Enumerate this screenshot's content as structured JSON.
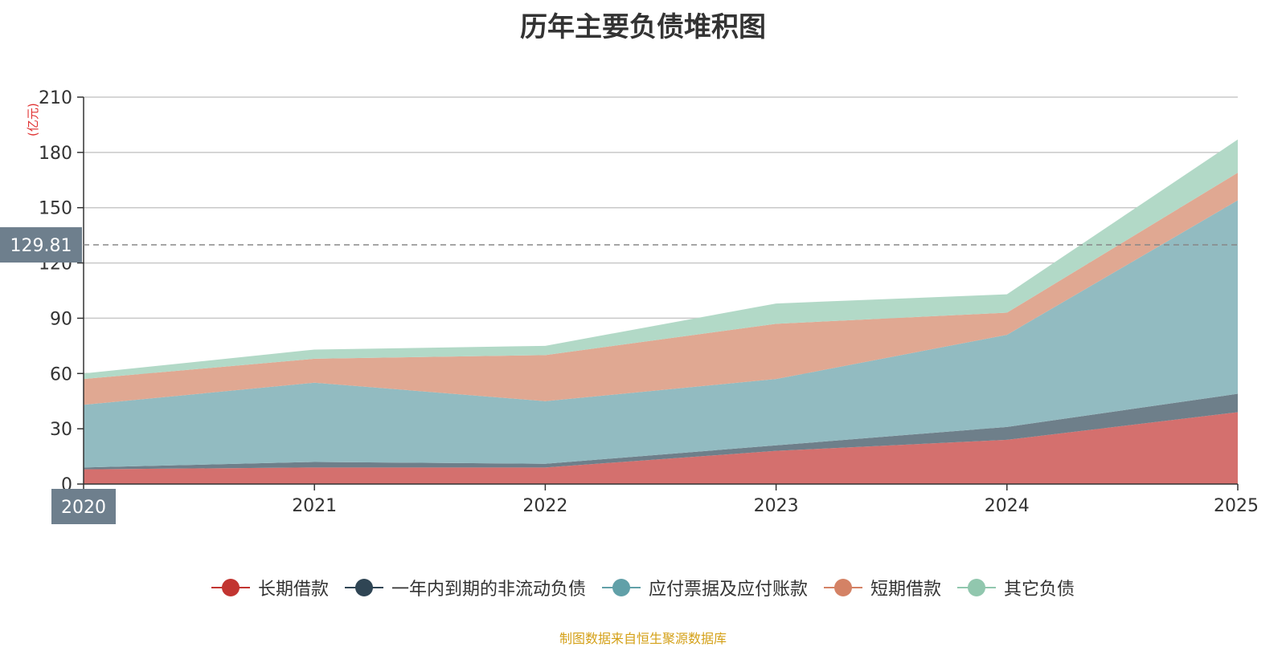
{
  "chart_data": {
    "type": "area",
    "stacked": true,
    "title": "历年主要负债堆积图",
    "ylabel": "(亿元)",
    "xlabel": "",
    "categories": [
      "2020",
      "2021",
      "2022",
      "2023",
      "2024",
      "2025"
    ],
    "y_ticks": [
      0,
      30,
      60,
      90,
      120,
      150,
      180,
      210
    ],
    "ylim": [
      0,
      210
    ],
    "grid": true,
    "legend_position": "bottom",
    "series": [
      {
        "name": "长期借款",
        "color": "#c23531",
        "fill": "#d4706e",
        "values": [
          8,
          9,
          9,
          18,
          24,
          39
        ]
      },
      {
        "name": "一年内到期的非流动负债",
        "color": "#2f4554",
        "fill": "#6e7f8a",
        "values": [
          1,
          3,
          2,
          3,
          7,
          10
        ]
      },
      {
        "name": "应付票据及应付账款",
        "color": "#61a0a8",
        "fill": "#92bbc1",
        "values": [
          34,
          43,
          34,
          36,
          50,
          105
        ]
      },
      {
        "name": "短期借款",
        "color": "#d48265",
        "fill": "#e0a892",
        "values": [
          14,
          13,
          25,
          30,
          12,
          15
        ]
      },
      {
        "name": "其它负债",
        "color": "#91c7ae",
        "fill": "#b2d9c7",
        "values": [
          3,
          5,
          5,
          11,
          10,
          18
        ]
      }
    ],
    "cursor": {
      "y_value": 129.81,
      "y_label": "129.81",
      "x_label": "2020"
    },
    "source_note": "制图数据来自恒生聚源数据库"
  }
}
